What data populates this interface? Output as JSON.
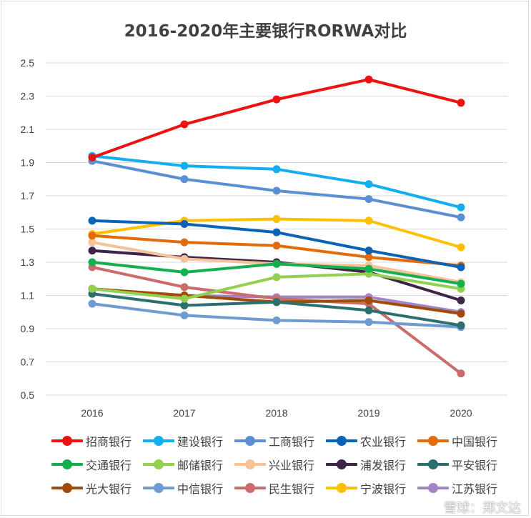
{
  "chart_data": {
    "type": "line",
    "title": "2016-2020年主要银行RORWA对比",
    "xlabel": "",
    "ylabel": "",
    "x": [
      "2016",
      "2017",
      "2018",
      "2019",
      "2020"
    ],
    "ylim": [
      0.5,
      2.5
    ],
    "yticks": [
      "0.5",
      "0.7",
      "0.9",
      "1.1",
      "1.3",
      "1.5",
      "1.7",
      "1.9",
      "2.1",
      "2.3",
      "2.5"
    ],
    "grid": true,
    "legend_position": "bottom",
    "series": [
      {
        "name": "招商银行",
        "color": "#ee1111",
        "values": [
          1.93,
          2.13,
          2.28,
          2.4,
          2.26
        ]
      },
      {
        "name": "建设银行",
        "color": "#13aef0",
        "values": [
          1.94,
          1.88,
          1.86,
          1.77,
          1.63
        ]
      },
      {
        "name": "工商银行",
        "color": "#5b8fd4",
        "values": [
          1.91,
          1.8,
          1.73,
          1.68,
          1.57
        ]
      },
      {
        "name": "农业银行",
        "color": "#0a63b5",
        "values": [
          1.55,
          1.53,
          1.48,
          1.37,
          1.27
        ]
      },
      {
        "name": "中国银行",
        "color": "#e36c0a",
        "values": [
          1.46,
          1.42,
          1.4,
          1.33,
          1.28
        ]
      },
      {
        "name": "交通银行",
        "color": "#14b04d",
        "values": [
          1.3,
          1.24,
          1.29,
          1.26,
          1.17
        ]
      },
      {
        "name": "邮储银行",
        "color": "#92d050",
        "values": [
          1.14,
          1.08,
          1.21,
          1.23,
          1.14
        ]
      },
      {
        "name": "兴业银行",
        "color": "#f6c297",
        "values": [
          1.42,
          1.32,
          1.29,
          1.28,
          1.18
        ]
      },
      {
        "name": "浦发银行",
        "color": "#3d2448",
        "values": [
          1.37,
          1.33,
          1.3,
          1.24,
          1.07
        ]
      },
      {
        "name": "平安银行",
        "color": "#2b6f6f",
        "values": [
          1.11,
          1.04,
          1.06,
          1.01,
          0.92
        ]
      },
      {
        "name": "光大银行",
        "color": "#a04b0a",
        "values": [
          1.14,
          1.1,
          1.06,
          1.07,
          0.99
        ]
      },
      {
        "name": "中信银行",
        "color": "#6f9bd0",
        "values": [
          1.05,
          0.98,
          0.95,
          0.94,
          0.91
        ]
      },
      {
        "name": "民生银行",
        "color": "#cc6b6b",
        "values": [
          1.27,
          1.15,
          1.08,
          1.05,
          0.63
        ]
      },
      {
        "name": "宁波银行",
        "color": "#ffc000",
        "values": [
          1.47,
          1.55,
          1.56,
          1.55,
          1.39
        ]
      },
      {
        "name": "江苏银行",
        "color": "#a384c4",
        "values": [
          1.14,
          1.1,
          1.09,
          1.09,
          1.0
        ]
      }
    ]
  },
  "watermark": "雪球：郑文达"
}
